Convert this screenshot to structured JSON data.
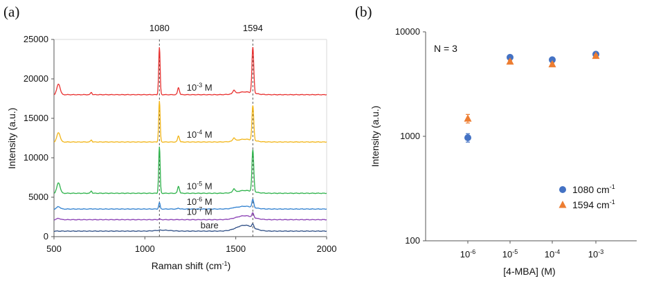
{
  "panel_a_label": "(a)",
  "panel_b_label": "(b)",
  "chart_data": [
    {
      "type": "line",
      "title": "",
      "xlabel": "Raman shift (cm-1)",
      "ylabel": "Intensity (a.u.)",
      "xlim": [
        500,
        2000
      ],
      "ylim": [
        0,
        25000
      ],
      "xticks": [
        "500",
        "1000",
        "1500",
        "2000"
      ],
      "yticks": [
        "0",
        "5000",
        "10000",
        "15000",
        "20000",
        "25000"
      ],
      "peak_markers": [
        {
          "x": 1080,
          "label": "1080"
        },
        {
          "x": 1594,
          "label": "1594"
        }
      ],
      "series": [
        {
          "name": "10-3 M",
          "base": "10",
          "exp": "-3",
          "unit": " M",
          "color": "#e8302f",
          "baseline": 18000,
          "peak_1080": 24000,
          "peak_1594": 23800,
          "label_x": 1230
        },
        {
          "name": "10-4 M",
          "base": "10",
          "exp": "-4",
          "unit": " M",
          "color": "#f2b517",
          "baseline": 12000,
          "peak_1080": 17200,
          "peak_1594": 16400,
          "label_x": 1230
        },
        {
          "name": "10-5 M",
          "base": "10",
          "exp": "-5",
          "unit": " M",
          "color": "#2db24a",
          "baseline": 5500,
          "peak_1080": 11400,
          "peak_1594": 10800,
          "label_x": 1230
        },
        {
          "name": "10-6 M",
          "base": "10",
          "exp": "-6",
          "unit": " M",
          "color": "#2f80d0",
          "baseline": 3500,
          "peak_1080": 4300,
          "peak_1594": 4500,
          "label_x": 1230
        },
        {
          "name": "10-7 M",
          "base": "10",
          "exp": "-7",
          "unit": " M",
          "color": "#8a3fb4",
          "baseline": 2150,
          "peak_1080": 2250,
          "peak_1594": 2700,
          "label_x": 1230
        },
        {
          "name": "bare",
          "base": "bare",
          "exp": "",
          "unit": "",
          "color": "#2f4f86",
          "baseline": 700,
          "peak_1080": 720,
          "peak_1594": 1150,
          "label_x": 1230
        }
      ]
    },
    {
      "type": "scatter",
      "title": "",
      "annotation": "N = 3",
      "xlabel": "[4-MBA] (M)",
      "ylabel": "Intensity (a.u.)",
      "yscale": "log",
      "ylim": [
        100,
        10000
      ],
      "yticks": [
        "100",
        "1000",
        "10000"
      ],
      "categories": [
        {
          "base": "10",
          "exp": "-6"
        },
        {
          "base": "10",
          "exp": "-5"
        },
        {
          "base": "10",
          "exp": "-4"
        },
        {
          "base": "10",
          "exp": "-3"
        }
      ],
      "legend_position": "bottom-right",
      "series": [
        {
          "name": "1080 cm-1",
          "legend_text": "1080 cm",
          "legend_exp": "-1",
          "marker": "circle",
          "color": "#4472c4",
          "values": [
            970,
            5700,
            5400,
            6100
          ],
          "errors": [
            90,
            150,
            150,
            150
          ]
        },
        {
          "name": "1594 cm-1",
          "legend_text": "1594 cm",
          "legend_exp": "-1",
          "marker": "triangle",
          "color": "#ed7d31",
          "values": [
            1480,
            5200,
            4900,
            5900
          ],
          "errors": [
            140,
            150,
            150,
            150
          ]
        }
      ]
    }
  ]
}
